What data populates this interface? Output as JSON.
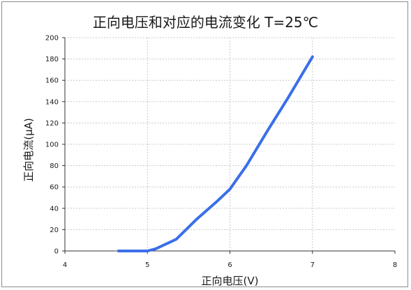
{
  "chart_data": {
    "type": "line",
    "title": "正向电压和对应的电流变化   T=25℃",
    "xlabel": "正向电压(V)",
    "ylabel": "正向电流(μA)",
    "xlim": [
      4,
      8
    ],
    "ylim": [
      0,
      200
    ],
    "xticks": [
      "4",
      "5",
      "6",
      "7",
      "8"
    ],
    "yticks": [
      "0",
      "20",
      "40",
      "60",
      "80",
      "100",
      "120",
      "140",
      "160",
      "180",
      "200"
    ],
    "grid": true,
    "legend": "none",
    "series": [
      {
        "color": "#3a6fe8",
        "x": [
          4.65,
          5.0,
          5.1,
          5.35,
          5.6,
          5.85,
          6.0,
          6.2,
          6.45,
          6.7,
          7.0
        ],
        "y": [
          0,
          0,
          2,
          11,
          30,
          47,
          58,
          80,
          112,
          143,
          182
        ]
      }
    ]
  }
}
